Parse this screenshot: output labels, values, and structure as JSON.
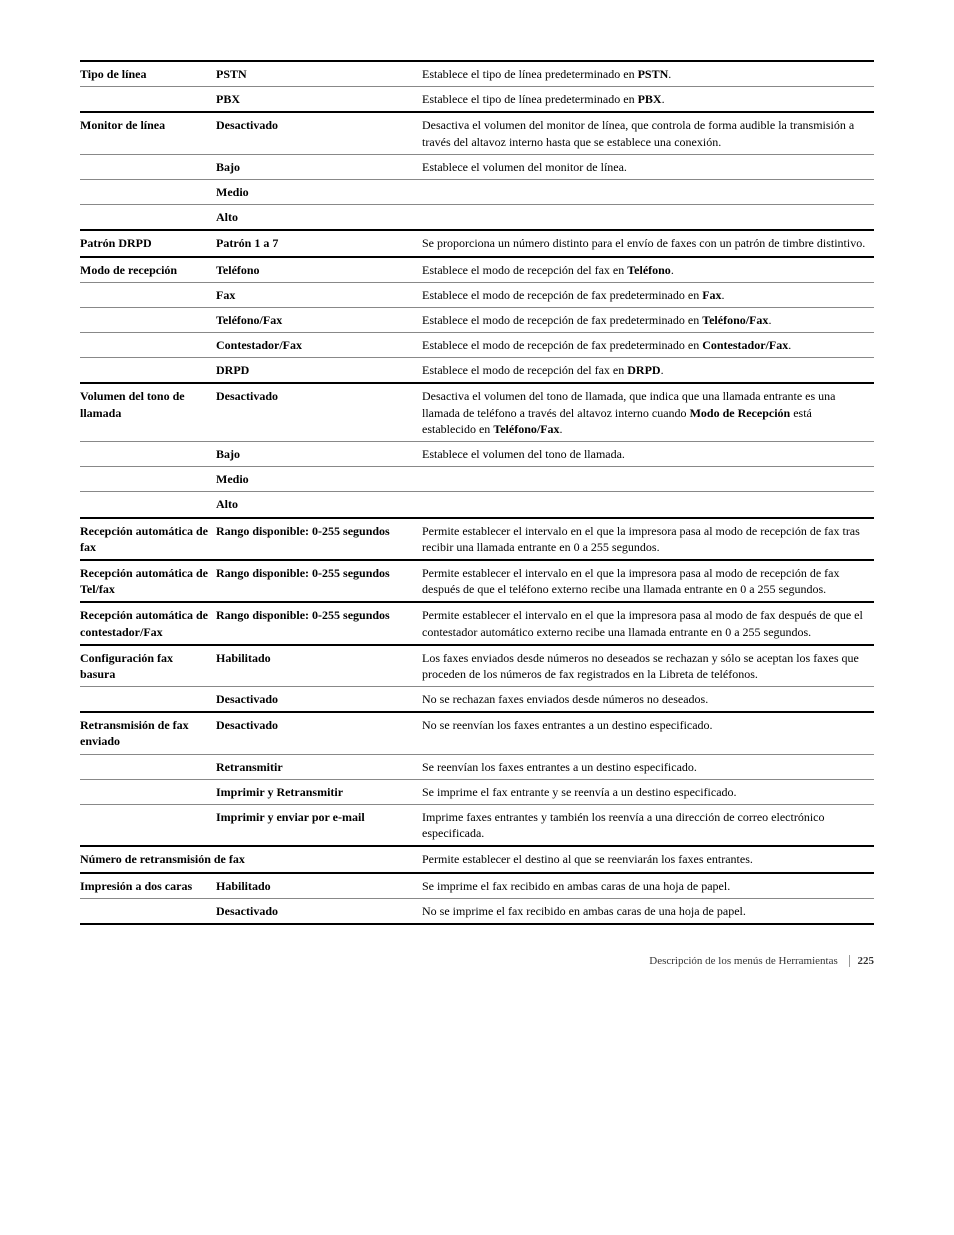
{
  "rows": [
    {
      "top": "thick",
      "c1": "Tipo de línea",
      "c2": "PSTN",
      "c3": "Establece el tipo de línea predeterminado en <b>PSTN</b>."
    },
    {
      "top": "thin",
      "c1": "",
      "c2": "PBX",
      "c3": "Establece el tipo de línea predeterminado en <b>PBX</b>."
    },
    {
      "top": "thick",
      "c1": "Monitor de línea",
      "c2": "Desactivado",
      "c3": "Desactiva el volumen del monitor de línea, que controla de forma audible la transmisión a través del altavoz interno hasta que se establece una conexión."
    },
    {
      "top": "thin",
      "c1": "",
      "c2": "Bajo",
      "c3": "Establece el volumen del monitor de línea."
    },
    {
      "top": "thin",
      "c1": "",
      "c2": "Medio",
      "c3": ""
    },
    {
      "top": "thin",
      "c1": "",
      "c2": "Alto",
      "c3": ""
    },
    {
      "top": "thick",
      "c1": "Patrón DRPD",
      "c2": "Patrón 1 a 7",
      "c3": "Se proporciona un número distinto para el envío de faxes con un patrón de timbre distintivo."
    },
    {
      "top": "thick",
      "c1": "Modo de recepción",
      "c2": "Teléfono",
      "c3": "Establece el modo de recepción del fax en <b>Teléfono</b>."
    },
    {
      "top": "thin",
      "c1": "",
      "c2": "Fax",
      "c3": "Establece el modo de recepción de fax predeterminado en <b>Fax</b>."
    },
    {
      "top": "thin",
      "c1": "",
      "c2": "Teléfono/Fax",
      "c3": "Establece el modo de recepción de fax predeterminado en <b>Teléfono/Fax</b>."
    },
    {
      "top": "thin",
      "c1": "",
      "c2": "Contestador/Fax",
      "c3": "Establece el modo de recepción de fax predeterminado en <b>Contestador/Fax</b>."
    },
    {
      "top": "thin",
      "c1": "",
      "c2": "DRPD",
      "c3": "Establece el modo de recepción del fax en <b>DRPD</b>."
    },
    {
      "top": "thick",
      "c1": "Volumen del tono de llamada",
      "c2": "Desactivado",
      "c3": "Desactiva el volumen del tono de llamada, que indica que una llamada entrante es una llamada de teléfono a través del altavoz interno cuando <b>Modo de Recepción</b> está establecido en <b>Teléfono/Fax</b>."
    },
    {
      "top": "thin",
      "c1": "",
      "c2": "Bajo",
      "c3": "Establece el volumen del tono de llamada."
    },
    {
      "top": "thin",
      "c1": "",
      "c2": "Medio",
      "c3": ""
    },
    {
      "top": "thin",
      "c1": "",
      "c2": "Alto",
      "c3": ""
    },
    {
      "top": "thick",
      "c1": "Recepción automática de fax",
      "c2": "Rango disponible: 0-255 segundos",
      "c3": "Permite establecer el intervalo en el que la impresora pasa al modo de recepción de fax tras recibir una llamada entrante en 0 a 255 segundos."
    },
    {
      "top": "thick",
      "c1": "Recepción automática de Tel/fax",
      "c2": "Rango disponible: 0-255 segundos",
      "c3": "Permite establecer el intervalo en el que la impresora pasa al modo de recepción de fax después de que el teléfono externo recibe una llamada entrante en 0 a 255 segundos."
    },
    {
      "top": "thick",
      "c1": "Recepción automática de contestador/Fax",
      "c2": "Rango disponible: 0-255 segundos",
      "c3": "Permite establecer el intervalo en el que la impresora pasa al modo de fax después de que el contestador automático externo recibe una llamada entrante en 0 a 255 segundos."
    },
    {
      "top": "thick",
      "c1": "Configuración fax basura",
      "c2": "Habilitado",
      "c3": "Los faxes enviados desde números no deseados se rechazan y sólo se aceptan los faxes que proceden de los números de fax registrados en la Libreta de teléfonos."
    },
    {
      "top": "thin",
      "c1": "",
      "c2": "Desactivado",
      "c3": "No se rechazan faxes enviados desde números no deseados."
    },
    {
      "top": "thick",
      "c1": "Retransmisión de fax enviado",
      "c2": "Desactivado",
      "c3": "No se reenvían los faxes entrantes a un destino especificado."
    },
    {
      "top": "thin",
      "c1": "",
      "c2": "Retransmitir",
      "c3": "Se reenvían los faxes entrantes a un destino especificado."
    },
    {
      "top": "thin",
      "c1": "",
      "c2": "Imprimir y Retransmitir",
      "c3": "Se imprime el fax entrante y se reenvía a un destino especificado."
    },
    {
      "top": "thin",
      "c1": "",
      "c2": "Imprimir y enviar por e-mail",
      "c3": "Imprime faxes entrantes y también los reenvía a una dirección de correo electrónico especificada."
    },
    {
      "top": "thick",
      "span12": true,
      "c12": "Número de retransmisión de fax",
      "c3": "Permite establecer el destino al que se reenviarán los faxes entrantes."
    },
    {
      "top": "thick",
      "c1": "Impresión a dos caras",
      "c2": "Habilitado",
      "c3": "Se imprime el fax recibido en ambas caras de una hoja de papel."
    },
    {
      "top": "thin",
      "c1": "",
      "c2": "Desactivado",
      "c3": "No se imprime el fax recibido en ambas caras de una hoja de papel."
    },
    {
      "top": "thick",
      "end": true
    }
  ],
  "footer": {
    "text": "Descripción de los menús de Herramientas",
    "page": "225"
  }
}
